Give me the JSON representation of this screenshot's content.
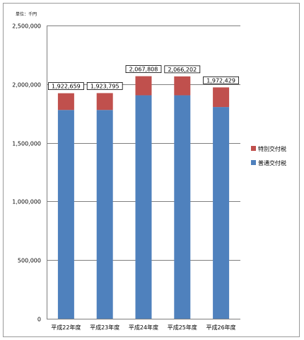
{
  "chart_data": {
    "type": "bar",
    "stacked": true,
    "unit_label": "単位：千円",
    "categories": [
      "平成22年度",
      "平成23年度",
      "平成24年度",
      "平成25年度",
      "平成26年度"
    ],
    "series": [
      {
        "name": "普通交付税",
        "color": "#4f81bd",
        "values": [
          1780000,
          1780000,
          1905000,
          1905000,
          1805000
        ]
      },
      {
        "name": "特別交付税",
        "color": "#c0504d",
        "values": [
          142659,
          143795,
          162808,
          161202,
          167429
        ]
      }
    ],
    "totals": [
      1922659,
      1923795,
      2067808,
      2066202,
      1972429
    ],
    "total_labels": [
      "1,922,659",
      "1,923,795",
      "2,067,808",
      "2,066,202",
      "1,972,429"
    ],
    "ylim": [
      0,
      2500000
    ],
    "yticks": [
      0,
      500000,
      1000000,
      1500000,
      2000000,
      2500000
    ],
    "ytick_labels": [
      "0",
      "500,000",
      "1,000,000",
      "1,500,000",
      "2,000,000",
      "2,500,000"
    ],
    "grid": true,
    "legend_position": "right",
    "legend_order": [
      1,
      0
    ]
  }
}
